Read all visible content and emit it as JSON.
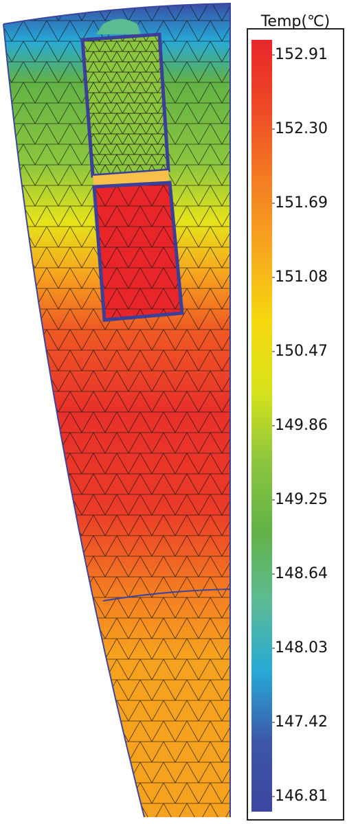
{
  "chart_data": {
    "type": "contour",
    "colorbar": {
      "title": "Temp(℃)",
      "clim": [
        146.81,
        152.91
      ],
      "ticks": [
        152.91,
        {
          "value": 152.3,
          "label": "152.30"
        },
        151.69,
        151.08,
        150.47,
        149.86,
        149.25,
        148.64,
        148.03,
        147.42,
        146.81
      ],
      "colors": [
        "#e8262a",
        "#ee4a25",
        "#f47d22",
        "#f7a81e",
        "#f6d80e",
        "#d8e21b",
        "#8cc63f",
        "#62b246",
        "#5cbb93",
        "#27a9d6",
        "#3d57a6",
        "#3b45a0"
      ]
    }
  }
}
